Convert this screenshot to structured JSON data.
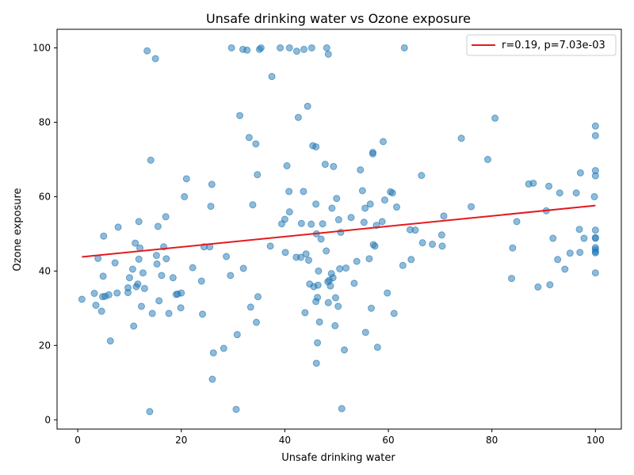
{
  "chart_data": {
    "type": "scatter",
    "title": "Unsafe drinking water vs Ozone exposure",
    "xlabel": "Unsafe drinking water",
    "ylabel": "Ozone exposure",
    "xlim": [
      -4,
      105
    ],
    "ylim": [
      -2.5,
      105
    ],
    "xticks": [
      0,
      20,
      40,
      60,
      80,
      100
    ],
    "yticks": [
      0,
      20,
      40,
      60,
      80,
      100
    ],
    "grid": false,
    "legend_position": "top-right",
    "colors": {
      "points": "#1f77b4",
      "fit_line": "#e41a1c"
    },
    "fit_line": {
      "label": "r=0.19, p=7.03e-03",
      "x": [
        0.8,
        100
      ],
      "y": [
        43.8,
        57.6
      ]
    },
    "points": [
      [
        0.8,
        32.4
      ],
      [
        3.2,
        34
      ],
      [
        3.5,
        30.8
      ],
      [
        3.9,
        43.4
      ],
      [
        4.6,
        29.2
      ],
      [
        4.8,
        33.1
      ],
      [
        4.9,
        38.6
      ],
      [
        5,
        49.4
      ],
      [
        5.3,
        33.2
      ],
      [
        6,
        33.6
      ],
      [
        6.3,
        21.2
      ],
      [
        7.2,
        42.2
      ],
      [
        7.6,
        34.1
      ],
      [
        7.8,
        51.8
      ],
      [
        9.7,
        34.2
      ],
      [
        9.7,
        35.5
      ],
      [
        10,
        38.2
      ],
      [
        10.6,
        40.5
      ],
      [
        10.8,
        25.2
      ],
      [
        11.1,
        47.5
      ],
      [
        11.3,
        35.8
      ],
      [
        11.6,
        36.5
      ],
      [
        11.8,
        53.3
      ],
      [
        11.8,
        43.2
      ],
      [
        12,
        46.2
      ],
      [
        12.3,
        30.5
      ],
      [
        12.6,
        39.5
      ],
      [
        12.9,
        35.3
      ],
      [
        13.4,
        99.2
      ],
      [
        13.9,
        2.2
      ],
      [
        14.1,
        69.8
      ],
      [
        14.4,
        28.6
      ],
      [
        15,
        97.1
      ],
      [
        15.2,
        44.2
      ],
      [
        15.3,
        41.9
      ],
      [
        15.5,
        52
      ],
      [
        15.7,
        32
      ],
      [
        16.2,
        38.8
      ],
      [
        16.6,
        46.5
      ],
      [
        17,
        54.6
      ],
      [
        17.1,
        43.3
      ],
      [
        17.6,
        28.6
      ],
      [
        18.4,
        38.2
      ],
      [
        19,
        33.7
      ],
      [
        19.3,
        33.8
      ],
      [
        19.9,
        30.1
      ],
      [
        20,
        34.1
      ],
      [
        20.6,
        60
      ],
      [
        21,
        64.8
      ],
      [
        22.2,
        40.9
      ],
      [
        23.9,
        37.3
      ],
      [
        24.1,
        28.4
      ],
      [
        24.4,
        46.5
      ],
      [
        25.5,
        46.5
      ],
      [
        25.7,
        57.4
      ],
      [
        25.9,
        63.3
      ],
      [
        26,
        10.9
      ],
      [
        26.2,
        18
      ],
      [
        28.2,
        19.2
      ],
      [
        28.7,
        43.9
      ],
      [
        29.5,
        38.8
      ],
      [
        29.7,
        100
      ],
      [
        30.6,
        2.8
      ],
      [
        30.8,
        22.9
      ],
      [
        31.3,
        81.8
      ],
      [
        31.9,
        99.6
      ],
      [
        32,
        40.7
      ],
      [
        32.7,
        99.4
      ],
      [
        33.1,
        75.9
      ],
      [
        33.4,
        30.3
      ],
      [
        33.8,
        57.8
      ],
      [
        34.4,
        74.2
      ],
      [
        34.5,
        26.2
      ],
      [
        34.7,
        65.9
      ],
      [
        34.8,
        33.1
      ],
      [
        35.1,
        99.6
      ],
      [
        35.4,
        100
      ],
      [
        37.2,
        46.7
      ],
      [
        37.5,
        92.3
      ],
      [
        39.1,
        100
      ],
      [
        39.4,
        52.7
      ],
      [
        40,
        53.9
      ],
      [
        40.1,
        45
      ],
      [
        40.4,
        68.3
      ],
      [
        40.8,
        61.4
      ],
      [
        40.9,
        55.9
      ],
      [
        40.9,
        100
      ],
      [
        42.2,
        43.7
      ],
      [
        42.3,
        99.1
      ],
      [
        42.6,
        81.3
      ],
      [
        43.1,
        43.7
      ],
      [
        43.2,
        52.8
      ],
      [
        43.6,
        61.4
      ],
      [
        43.7,
        99.6
      ],
      [
        43.9,
        28.8
      ],
      [
        44.1,
        44.6
      ],
      [
        44.4,
        84.3
      ],
      [
        44.6,
        42.9
      ],
      [
        44.8,
        36.5
      ],
      [
        45.1,
        52.6
      ],
      [
        45.2,
        100
      ],
      [
        45.4,
        73.7
      ],
      [
        45.6,
        35.8
      ],
      [
        46,
        31.8
      ],
      [
        46,
        58
      ],
      [
        46,
        73.4
      ],
      [
        46.1,
        15.2
      ],
      [
        46.1,
        50
      ],
      [
        46.3,
        20.7
      ],
      [
        46.3,
        32.9
      ],
      [
        46.4,
        36.2
      ],
      [
        46.5,
        40
      ],
      [
        46.7,
        26.3
      ],
      [
        47,
        48.6
      ],
      [
        47.3,
        52.7
      ],
      [
        47.8,
        68.7
      ],
      [
        48,
        45.4
      ],
      [
        48.1,
        100
      ],
      [
        48.3,
        37.1
      ],
      [
        48.4,
        31.5
      ],
      [
        48.4,
        98.3
      ],
      [
        48.6,
        37.5
      ],
      [
        48.8,
        36
      ],
      [
        49,
        39.3
      ],
      [
        49.1,
        56.9
      ],
      [
        49.3,
        38.2
      ],
      [
        49.4,
        68.1
      ],
      [
        49.7,
        25.3
      ],
      [
        49.8,
        32.8
      ],
      [
        50,
        59.5
      ],
      [
        50.3,
        30.5
      ],
      [
        50.4,
        53.8
      ],
      [
        50.6,
        40.6
      ],
      [
        50.8,
        50.4
      ],
      [
        51,
        3
      ],
      [
        51.5,
        18.8
      ],
      [
        51.8,
        40.8
      ],
      [
        52.8,
        54.4
      ],
      [
        53.4,
        36.7
      ],
      [
        53.9,
        42.6
      ],
      [
        54.6,
        67.2
      ],
      [
        55,
        61.6
      ],
      [
        55.3,
        53.1
      ],
      [
        55.5,
        56.9
      ],
      [
        55.6,
        23.5
      ],
      [
        56.3,
        43.3
      ],
      [
        56.5,
        58
      ],
      [
        56.7,
        30
      ],
      [
        57,
        71.9
      ],
      [
        57,
        71.5
      ],
      [
        57.1,
        47.1
      ],
      [
        57.4,
        46.7
      ],
      [
        57.7,
        52.3
      ],
      [
        57.9,
        19.5
      ],
      [
        58.8,
        53.3
      ],
      [
        59,
        74.8
      ],
      [
        59.3,
        59.1
      ],
      [
        59.8,
        34.1
      ],
      [
        60.4,
        61.3
      ],
      [
        60.8,
        61
      ],
      [
        61.1,
        28.6
      ],
      [
        61.6,
        57.2
      ],
      [
        62.8,
        41.5
      ],
      [
        63.1,
        100
      ],
      [
        64.2,
        51.1
      ],
      [
        64.4,
        43.1
      ],
      [
        65.2,
        51
      ],
      [
        66.4,
        65.7
      ],
      [
        66.6,
        47.6
      ],
      [
        68.5,
        47.2
      ],
      [
        70.3,
        49.7
      ],
      [
        70.4,
        46.7
      ],
      [
        70.7,
        54.8
      ],
      [
        74.1,
        75.7
      ],
      [
        76,
        57.3
      ],
      [
        79.2,
        70
      ],
      [
        80.6,
        81.1
      ],
      [
        83.8,
        38
      ],
      [
        84,
        46.2
      ],
      [
        84.8,
        53.3
      ],
      [
        87.1,
        63.4
      ],
      [
        88,
        63.6
      ],
      [
        88.9,
        35.7
      ],
      [
        90.5,
        56.2
      ],
      [
        91,
        62.8
      ],
      [
        91.2,
        36.3
      ],
      [
        91.8,
        48.8
      ],
      [
        92.7,
        43.1
      ],
      [
        93.1,
        61
      ],
      [
        94.1,
        40.5
      ],
      [
        95.1,
        44.8
      ],
      [
        96.3,
        61
      ],
      [
        96.9,
        51.2
      ],
      [
        97.1,
        66.4
      ],
      [
        97,
        45
      ],
      [
        97.8,
        48.8
      ],
      [
        99.8,
        60
      ],
      [
        100,
        39.5
      ],
      [
        100,
        44.9
      ],
      [
        100,
        45.2
      ],
      [
        100,
        45.8
      ],
      [
        100,
        46.3
      ],
      [
        100,
        48.8
      ],
      [
        100,
        49
      ],
      [
        100,
        51
      ],
      [
        100,
        65.6
      ],
      [
        100,
        67
      ],
      [
        100,
        76.4
      ],
      [
        100,
        79
      ]
    ]
  }
}
